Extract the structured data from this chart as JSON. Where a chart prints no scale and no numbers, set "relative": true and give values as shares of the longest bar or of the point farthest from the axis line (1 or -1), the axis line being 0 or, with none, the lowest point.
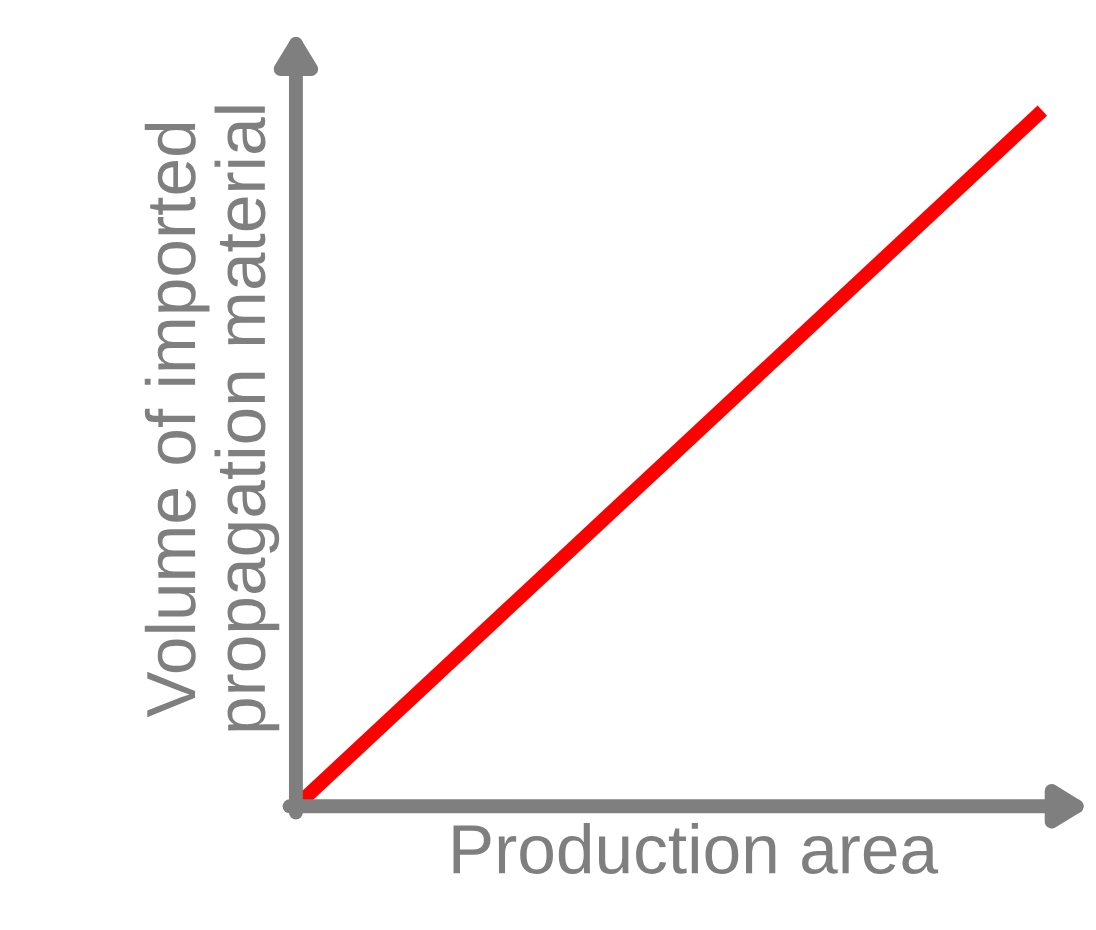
{
  "chart_data": {
    "type": "line",
    "relative": true,
    "categories": [
      null,
      null
    ],
    "xlabel": "Production area",
    "ylabel": "Volume of imported\npropagation material",
    "series": [
      {
        "color": "#ff0000",
        "values": [
          0,
          1
        ]
      }
    ],
    "grid": false,
    "legend": false,
    "tick_labels": false,
    "marker": "none",
    "line_style": "solid"
  }
}
